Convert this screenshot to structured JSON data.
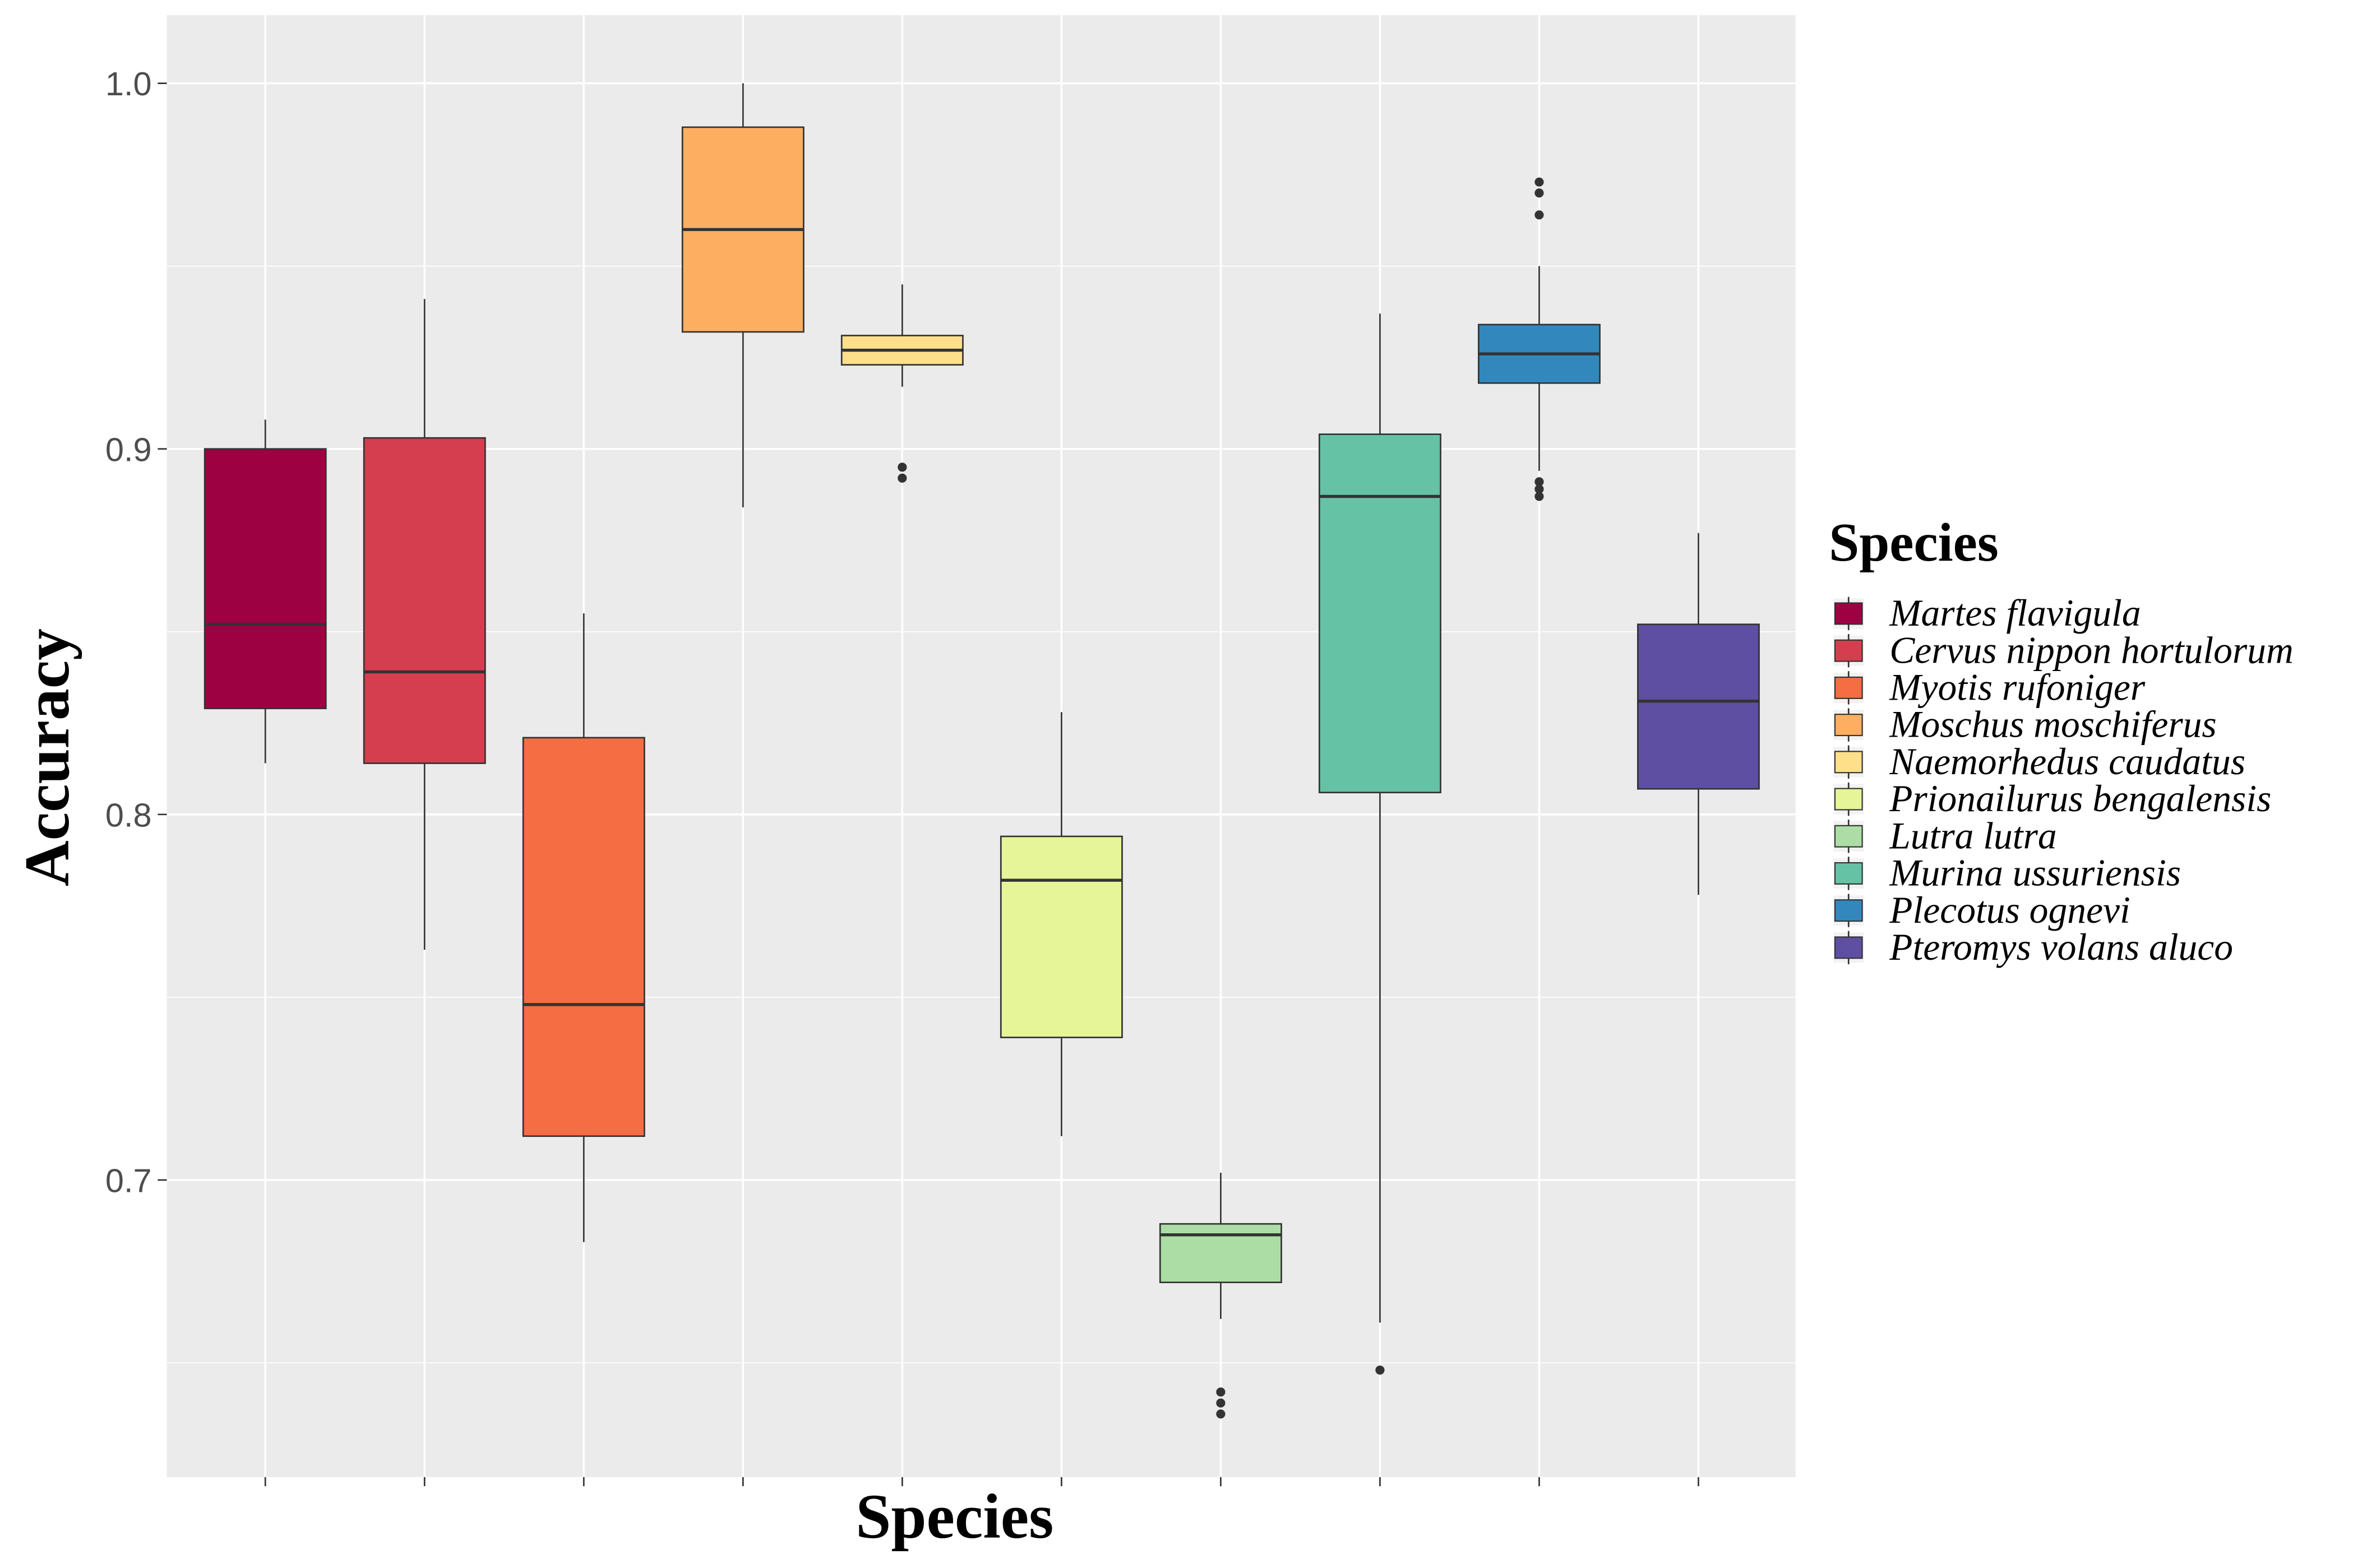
{
  "chart_data": {
    "type": "box",
    "title": "",
    "xlabel": "Species",
    "ylabel": "Accuracy",
    "ylim": [
      0.619,
      1.019
    ],
    "yticks": [
      0.7,
      0.8,
      0.9,
      1.0
    ],
    "ytick_labels": [
      "0.7",
      "0.8",
      "0.9",
      "1.0"
    ],
    "grid": true,
    "legend_title": "Species",
    "legend_position": "right",
    "series": [
      {
        "name": "Martes flavigula",
        "color": "#9E0142",
        "whisker_low": 0.814,
        "q1": 0.829,
        "median": 0.852,
        "q3": 0.9,
        "whisker_high": 0.908,
        "outliers": []
      },
      {
        "name": "Cervus nippon hortulorum",
        "color": "#D53E4F",
        "whisker_low": 0.763,
        "q1": 0.814,
        "median": 0.839,
        "q3": 0.903,
        "whisker_high": 0.941,
        "outliers": []
      },
      {
        "name": "Myotis rufoniger",
        "color": "#F46D43",
        "whisker_low": 0.683,
        "q1": 0.712,
        "median": 0.748,
        "q3": 0.821,
        "whisker_high": 0.855,
        "outliers": []
      },
      {
        "name": "Moschus moschiferus",
        "color": "#FDAE61",
        "whisker_low": 0.884,
        "q1": 0.932,
        "median": 0.96,
        "q3": 0.988,
        "whisker_high": 1.0,
        "outliers": []
      },
      {
        "name": "Naemorhedus caudatus",
        "color": "#FEE08B",
        "whisker_low": 0.917,
        "q1": 0.923,
        "median": 0.927,
        "q3": 0.931,
        "whisker_high": 0.945,
        "outliers": [
          0.895,
          0.892
        ]
      },
      {
        "name": "Prionailurus bengalensis",
        "color": "#E6F598",
        "whisker_low": 0.712,
        "q1": 0.739,
        "median": 0.782,
        "q3": 0.794,
        "whisker_high": 0.828,
        "outliers": []
      },
      {
        "name": "Lutra lutra",
        "color": "#ABDDA4",
        "whisker_low": 0.662,
        "q1": 0.672,
        "median": 0.685,
        "q3": 0.688,
        "whisker_high": 0.702,
        "outliers": [
          0.642,
          0.639,
          0.636
        ]
      },
      {
        "name": "Murina ussuriensis",
        "color": "#66C2A5",
        "whisker_low": 0.661,
        "q1": 0.806,
        "median": 0.887,
        "q3": 0.904,
        "whisker_high": 0.937,
        "outliers": [
          0.648
        ]
      },
      {
        "name": "Plecotus ognevi",
        "color": "#3288BD",
        "whisker_low": 0.894,
        "q1": 0.918,
        "median": 0.926,
        "q3": 0.934,
        "whisker_high": 0.95,
        "outliers": [
          0.973,
          0.97,
          0.964,
          0.891,
          0.889,
          0.887
        ]
      },
      {
        "name": "Pteromys volans aluco",
        "color": "#5E4FA2",
        "whisker_low": 0.778,
        "q1": 0.807,
        "median": 0.831,
        "q3": 0.852,
        "whisker_high": 0.877,
        "outliers": []
      }
    ]
  }
}
